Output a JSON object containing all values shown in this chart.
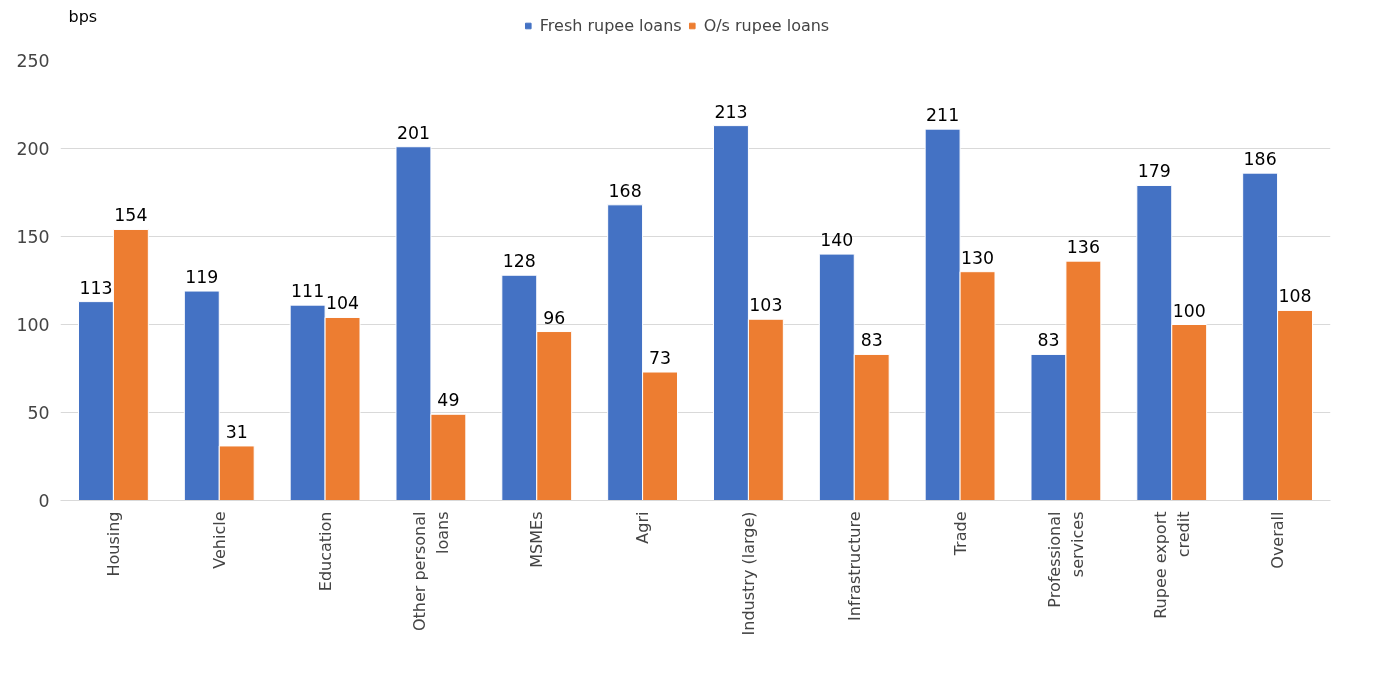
{
  "chart_data": {
    "type": "bar",
    "ylabel": "bps",
    "categories": [
      "Housing",
      "Vehicle",
      "Education",
      "Other personal loans",
      "MSMEs",
      "Agri",
      "Industry (large)",
      "Infrastructure",
      "Trade",
      "Professional services",
      "Rupee export credit",
      "Overall"
    ],
    "series": [
      {
        "name": "Fresh rupee loans",
        "color": "#4472c4",
        "values": [
          113,
          119,
          111,
          201,
          128,
          168,
          213,
          140,
          211,
          83,
          179,
          186
        ]
      },
      {
        "name": "O/s rupee loans",
        "color": "#ed7d31",
        "values": [
          154,
          31,
          104,
          49,
          96,
          73,
          103,
          83,
          130,
          136,
          100,
          108
        ]
      }
    ],
    "ylim": [
      0,
      250
    ],
    "yticks": [
      0,
      50,
      100,
      150,
      200,
      250
    ],
    "grid": "y",
    "legend": "top",
    "data_labels": true
  }
}
